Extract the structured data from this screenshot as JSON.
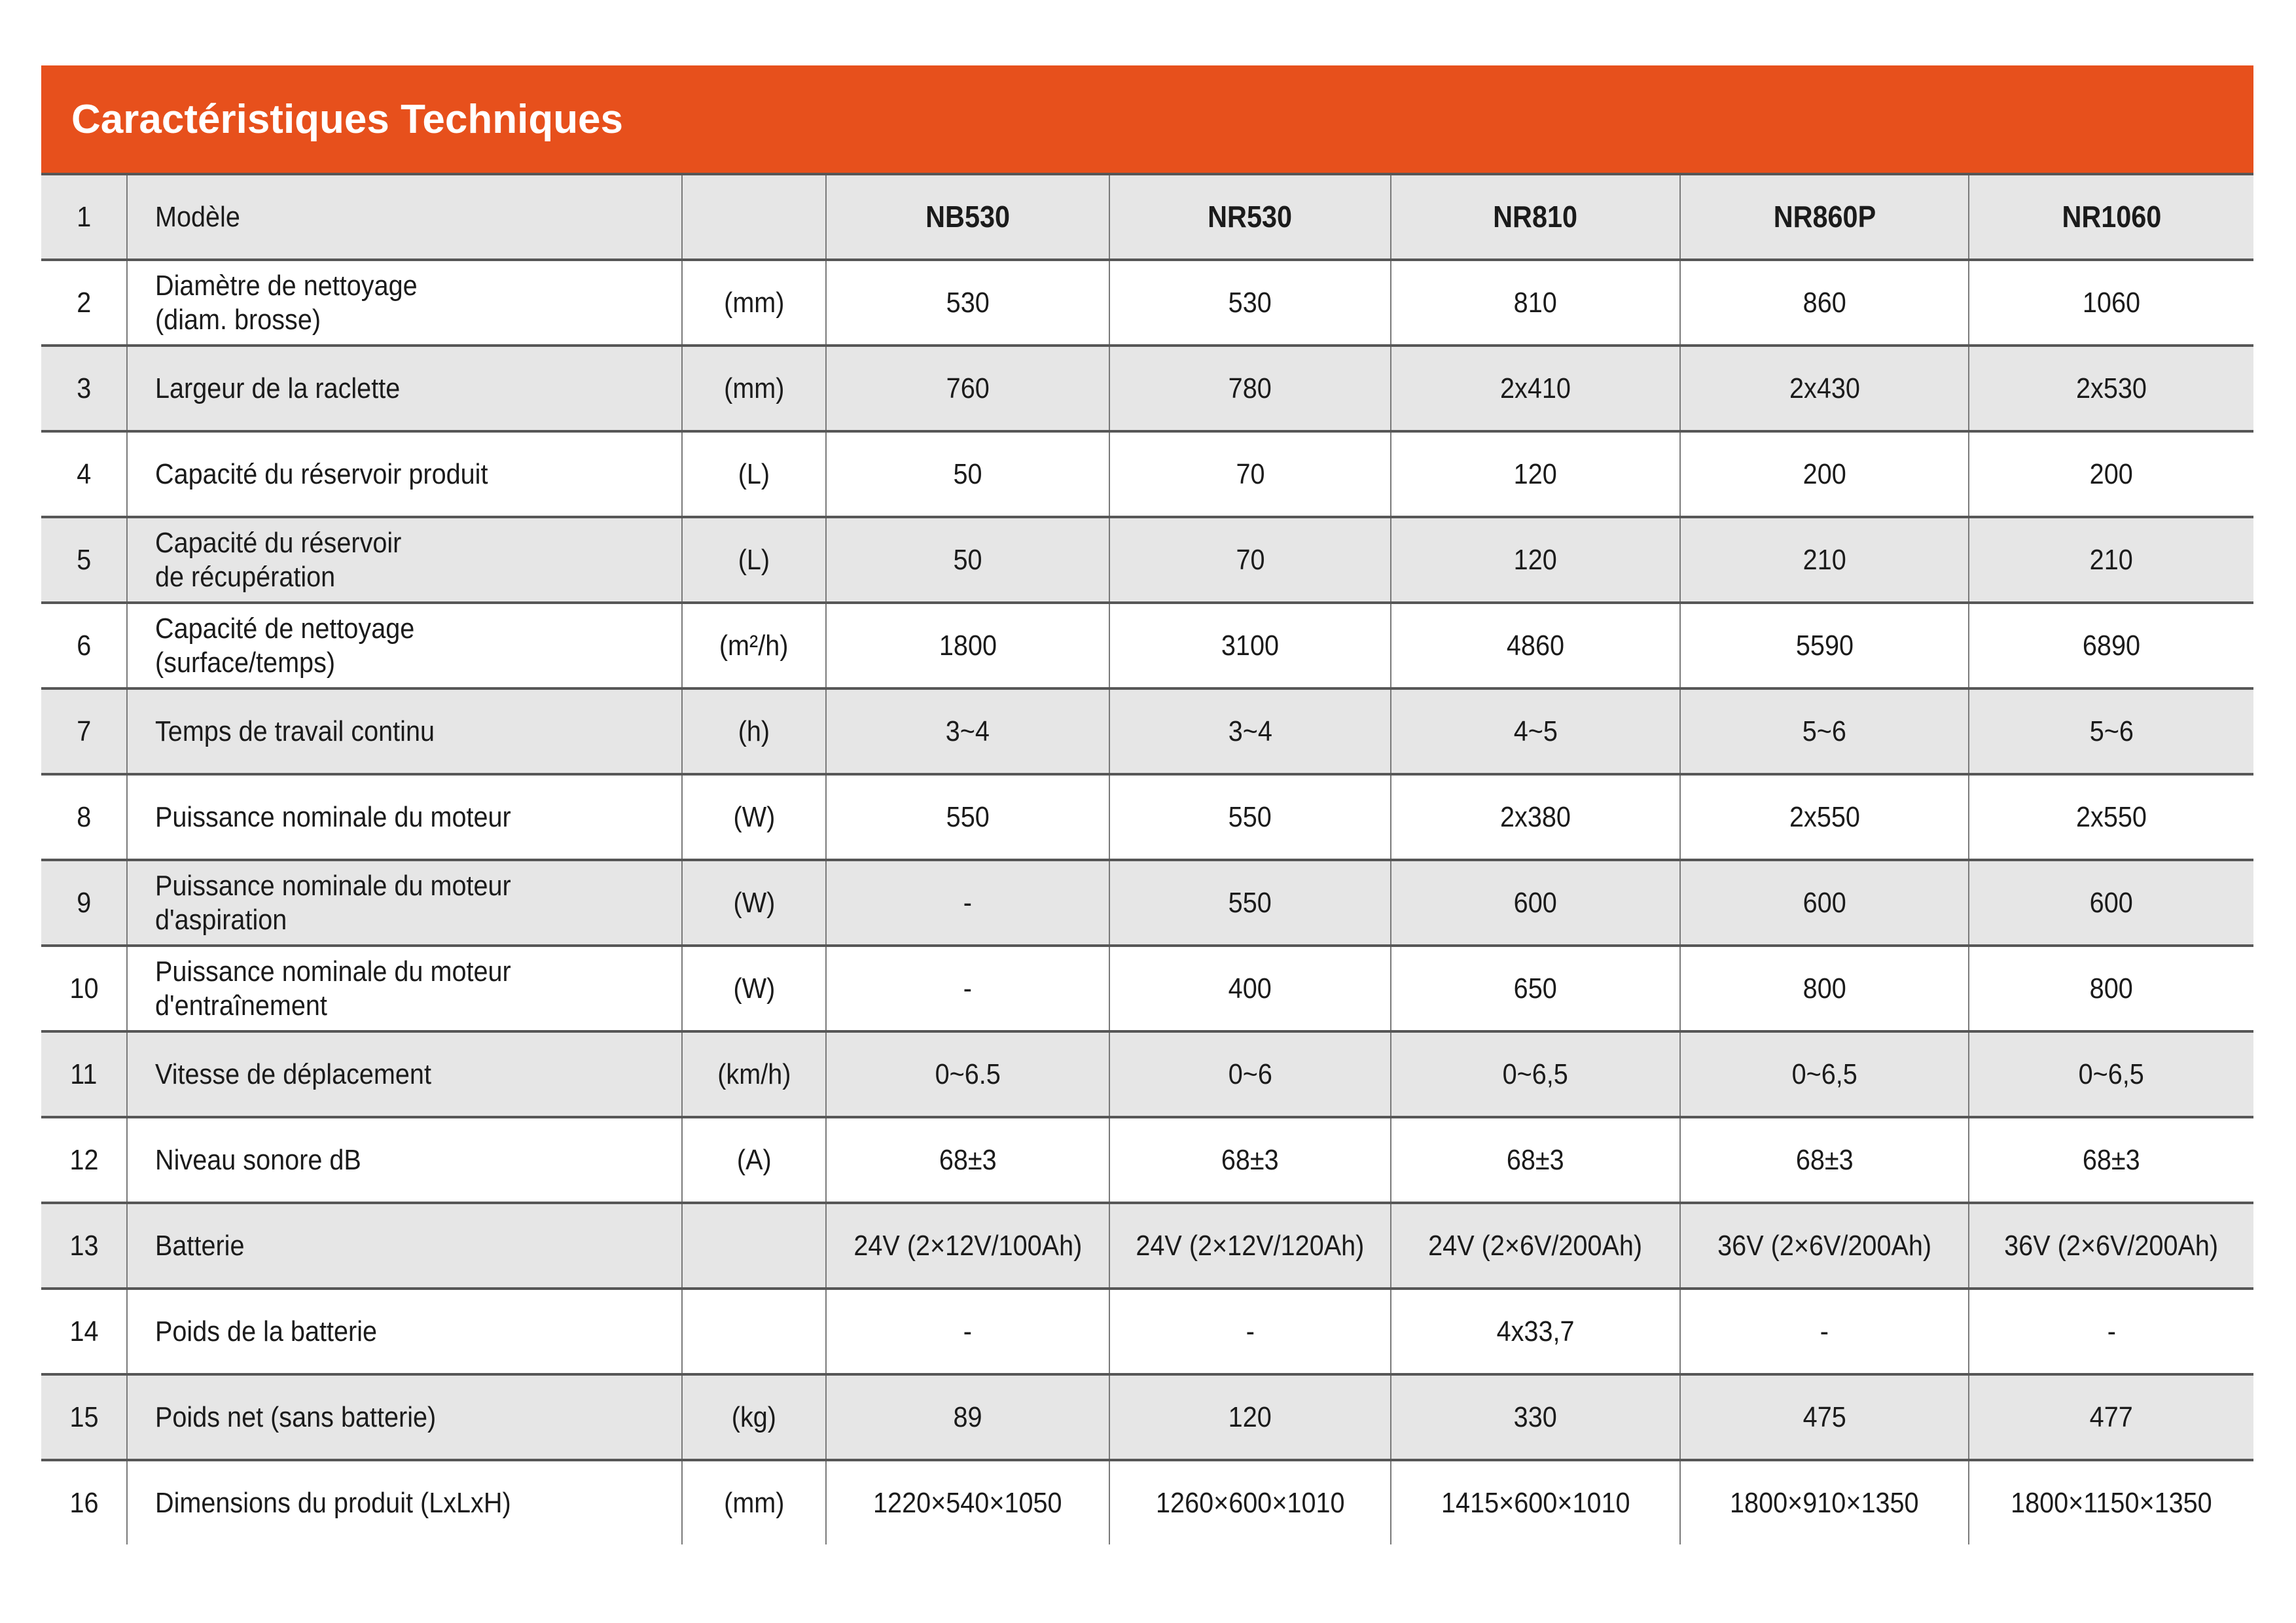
{
  "title": "Caractéristiques Techniques",
  "colors": {
    "header_bg": "#E7501C",
    "header_fg": "#FFFFFF",
    "row_alt_bg": "#E6E6E6",
    "row_bg": "#FFFFFF",
    "border_dark": "#575757",
    "border_light": "#7A7A7A",
    "text": "#1B1B1B"
  },
  "table": {
    "rows": [
      {
        "num": "1",
        "label": "Modèle",
        "unit": "",
        "values": [
          "NB530",
          "NR530",
          "NR810",
          "NR860P",
          "NR1060"
        ]
      },
      {
        "num": "2",
        "label": [
          "Diamètre de nettoyage",
          "(diam. brosse)"
        ],
        "unit": "(mm)",
        "values": [
          "530",
          "530",
          "810",
          "860",
          "1060"
        ]
      },
      {
        "num": "3",
        "label": "Largeur de la raclette",
        "unit": "(mm)",
        "values": [
          "760",
          "780",
          "2x410",
          "2x430",
          "2x530"
        ]
      },
      {
        "num": "4",
        "label": "Capacité du réservoir produit",
        "unit": "(L)",
        "values": [
          "50",
          "70",
          "120",
          "200",
          "200"
        ]
      },
      {
        "num": "5",
        "label": [
          "Capacité du réservoir",
          "de récupération"
        ],
        "unit": "(L)",
        "values": [
          "50",
          "70",
          "120",
          "210",
          "210"
        ]
      },
      {
        "num": "6",
        "label": [
          "Capacité de nettoyage",
          "(surface/temps)"
        ],
        "unit": "(m²/h)",
        "values": [
          "1800",
          "3100",
          "4860",
          "5590",
          "6890"
        ]
      },
      {
        "num": "7",
        "label": "Temps de travail continu",
        "unit": "(h)",
        "values": [
          "3~4",
          "3~4",
          "4~5",
          "5~6",
          "5~6"
        ]
      },
      {
        "num": "8",
        "label": "Puissance nominale du moteur",
        "unit": "(W)",
        "values": [
          "550",
          "550",
          "2x380",
          "2x550",
          "2x550"
        ]
      },
      {
        "num": "9",
        "label": [
          "Puissance nominale du moteur",
          "d'aspiration"
        ],
        "unit": "(W)",
        "values": [
          "-",
          "550",
          "600",
          "600",
          "600"
        ]
      },
      {
        "num": "10",
        "label": [
          "Puissance nominale du moteur",
          "d'entraînement"
        ],
        "unit": "(W)",
        "values": [
          "-",
          "400",
          "650",
          "800",
          "800"
        ]
      },
      {
        "num": "11",
        "label": "Vitesse de déplacement",
        "unit": "(km/h)",
        "values": [
          "0~6.5",
          "0~6",
          "0~6,5",
          "0~6,5",
          "0~6,5"
        ]
      },
      {
        "num": "12",
        "label": "Niveau sonore dB",
        "unit": "(A)",
        "values": [
          "68±3",
          "68±3",
          "68±3",
          "68±3",
          "68±3"
        ]
      },
      {
        "num": "13",
        "label": "Batterie",
        "unit": "",
        "values": [
          "24V (2×12V/100Ah)",
          "24V (2×12V/120Ah)",
          "24V (2×6V/200Ah)",
          "36V (2×6V/200Ah)",
          "36V (2×6V/200Ah)"
        ]
      },
      {
        "num": "14",
        "label": "Poids de la batterie",
        "unit": "",
        "values": [
          "-",
          "-",
          "4x33,7",
          "-",
          "-"
        ]
      },
      {
        "num": "15",
        "label": "Poids net (sans batterie)",
        "unit": "(kg)",
        "values": [
          "89",
          "120",
          "330",
          "475",
          "477"
        ]
      },
      {
        "num": "16",
        "label": "Dimensions du produit (LxLxH)",
        "unit": "(mm)",
        "values": [
          "1220×540×1050",
          "1260×600×1010",
          "1415×600×1010",
          "1800×910×1350",
          "1800×1150×1350"
        ]
      }
    ]
  }
}
